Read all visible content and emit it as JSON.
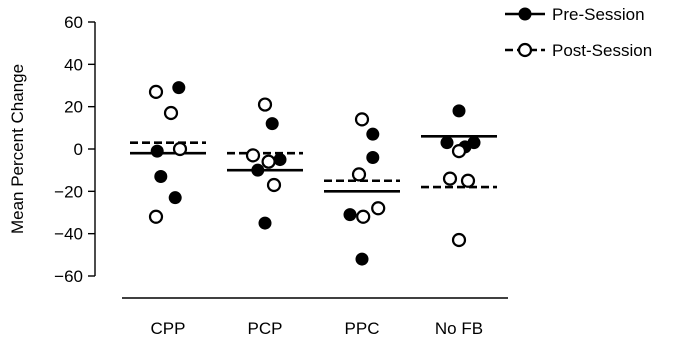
{
  "chart_data": {
    "type": "scatter",
    "categories": [
      "CPP",
      "PCP",
      "PPC",
      "No FB"
    ],
    "ylabel": "Mean Percent Change",
    "xlabel": "",
    "ylim": [
      -60,
      60
    ],
    "y_ticks": [
      60,
      40,
      20,
      0,
      -20,
      -40,
      -60
    ],
    "y_tick_labels": [
      "60",
      "40",
      "20",
      "0",
      "−20",
      "−40",
      "−60"
    ],
    "legend_position": "top-right",
    "series": [
      {
        "name": "Pre-Session",
        "marker": "filled-circle",
        "line_style": "solid",
        "color": "#000000",
        "points": [
          {
            "category": "CPP",
            "offset": 0.18,
            "y": 29
          },
          {
            "category": "CPP",
            "offset": -0.18,
            "y": -1
          },
          {
            "category": "CPP",
            "offset": -0.12,
            "y": -13
          },
          {
            "category": "CPP",
            "offset": 0.12,
            "y": -23
          },
          {
            "category": "PCP",
            "offset": 0.12,
            "y": 12
          },
          {
            "category": "PCP",
            "offset": 0.25,
            "y": -5
          },
          {
            "category": "PCP",
            "offset": -0.12,
            "y": -10
          },
          {
            "category": "PCP",
            "offset": 0.0,
            "y": -35
          },
          {
            "category": "PPC",
            "offset": 0.18,
            "y": 7
          },
          {
            "category": "PPC",
            "offset": 0.18,
            "y": -4
          },
          {
            "category": "PPC",
            "offset": -0.2,
            "y": -31
          },
          {
            "category": "PPC",
            "offset": 0.0,
            "y": -52
          },
          {
            "category": "No FB",
            "offset": 0.0,
            "y": 18
          },
          {
            "category": "No FB",
            "offset": -0.2,
            "y": 3
          },
          {
            "category": "No FB",
            "offset": 0.1,
            "y": 1
          },
          {
            "category": "No FB",
            "offset": 0.25,
            "y": 3
          }
        ],
        "means": [
          {
            "category": "CPP",
            "y": -2
          },
          {
            "category": "PCP",
            "y": -10
          },
          {
            "category": "PPC",
            "y": -20
          },
          {
            "category": "No FB",
            "y": 6
          }
        ]
      },
      {
        "name": "Post-Session",
        "marker": "open-circle",
        "line_style": "dashed",
        "color": "#000000",
        "points": [
          {
            "category": "CPP",
            "offset": -0.2,
            "y": 27
          },
          {
            "category": "CPP",
            "offset": 0.05,
            "y": 17
          },
          {
            "category": "CPP",
            "offset": 0.2,
            "y": 0
          },
          {
            "category": "CPP",
            "offset": -0.2,
            "y": -32
          },
          {
            "category": "PCP",
            "offset": -0.2,
            "y": -3
          },
          {
            "category": "PCP",
            "offset": 0.0,
            "y": 21
          },
          {
            "category": "PCP",
            "offset": 0.06,
            "y": -6
          },
          {
            "category": "PCP",
            "offset": 0.15,
            "y": -17
          },
          {
            "category": "PPC",
            "offset": 0.0,
            "y": 14
          },
          {
            "category": "PPC",
            "offset": -0.05,
            "y": -12
          },
          {
            "category": "PPC",
            "offset": 0.02,
            "y": -32
          },
          {
            "category": "PPC",
            "offset": 0.27,
            "y": -28
          },
          {
            "category": "No FB",
            "offset": 0.0,
            "y": -1
          },
          {
            "category": "No FB",
            "offset": -0.15,
            "y": -14
          },
          {
            "category": "No FB",
            "offset": 0.15,
            "y": -15
          },
          {
            "category": "No FB",
            "offset": 0.0,
            "y": -43
          }
        ],
        "means": [
          {
            "category": "CPP",
            "y": 3
          },
          {
            "category": "PCP",
            "y": -2
          },
          {
            "category": "PPC",
            "y": -15
          },
          {
            "category": "No FB",
            "y": -18
          }
        ]
      }
    ]
  }
}
